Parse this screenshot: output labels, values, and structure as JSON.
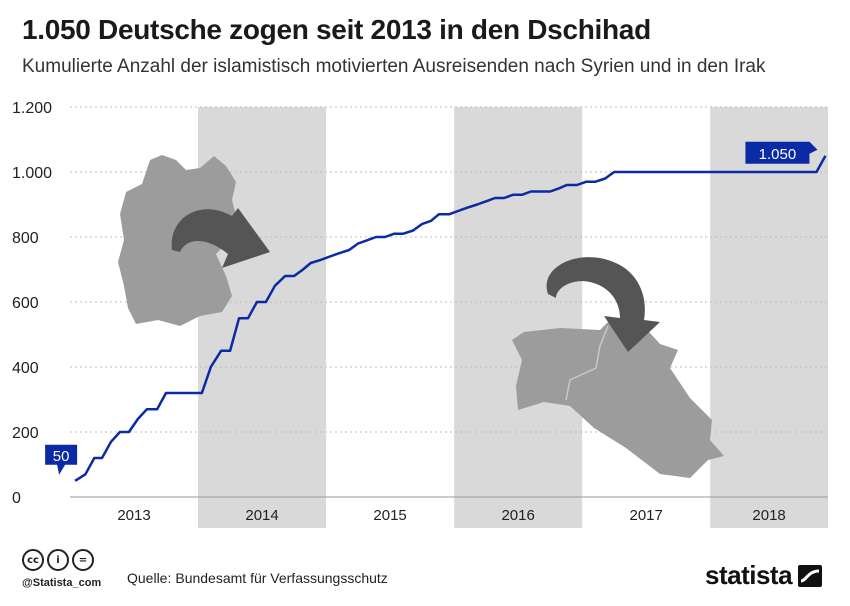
{
  "header": {
    "title": "1.050 Deutsche zogen seit 2013 in den Dschihad",
    "subtitle": "Kumulierte Anzahl der islamistisch motivierten Ausreisenden nach Syrien und in den Irak"
  },
  "chart_data": {
    "type": "line",
    "title": "1.050 Deutsche zogen seit 2013 in den Dschihad",
    "subtitle": "Kumulierte Anzahl der islamistisch motivierten Ausreisenden nach Syrien und in den Irak",
    "xlabel": "",
    "ylabel": "",
    "ylim": [
      0,
      1200
    ],
    "yticks": [
      0,
      200,
      400,
      600,
      800,
      1000,
      1200
    ],
    "ytick_labels": [
      "0",
      "200",
      "400",
      "600",
      "800",
      "1.000",
      "1.200"
    ],
    "xlim": [
      2013.0,
      2018.92
    ],
    "years": [
      "2013",
      "2014",
      "2015",
      "2016",
      "2017",
      "2018"
    ],
    "shaded_years": [
      "2014",
      "2016",
      "2018"
    ],
    "grid": true,
    "line_color": "#0b2aa5",
    "shade_color": "#d9d9d9",
    "series": [
      {
        "x": [
          2013.04,
          2013.12,
          2013.19,
          2013.25,
          2013.32,
          2013.39,
          2013.46,
          2013.53,
          2013.6,
          2013.68,
          2013.75,
          2013.82,
          2013.88,
          2013.96,
          2014.03,
          2014.1,
          2014.18,
          2014.25,
          2014.32,
          2014.39,
          2014.46,
          2014.53,
          2014.6,
          2014.68,
          2014.75,
          2014.82,
          2014.88,
          2014.96,
          2015.03,
          2015.1,
          2015.18,
          2015.25,
          2015.32,
          2015.39,
          2015.46,
          2015.53,
          2015.6,
          2015.68,
          2015.75,
          2015.82,
          2015.88,
          2015.96,
          2016.03,
          2016.1,
          2016.18,
          2016.25,
          2016.32,
          2016.39,
          2016.46,
          2016.53,
          2016.6,
          2016.68,
          2016.75,
          2016.82,
          2016.88,
          2016.96,
          2017.03,
          2017.1,
          2017.18,
          2017.25,
          2017.32,
          2017.39,
          2017.46,
          2017.53,
          2017.6,
          2017.68,
          2017.75,
          2017.82,
          2017.88,
          2017.96,
          2018.03,
          2018.1,
          2018.18,
          2018.25,
          2018.32,
          2018.39,
          2018.46,
          2018.53,
          2018.6,
          2018.68,
          2018.75,
          2018.83,
          2018.9
        ],
        "values": [
          50,
          70,
          120,
          120,
          170,
          200,
          200,
          240,
          270,
          270,
          320,
          320,
          320,
          320,
          320,
          400,
          450,
          450,
          550,
          550,
          600,
          600,
          650,
          680,
          680,
          700,
          720,
          730,
          740,
          750,
          760,
          780,
          790,
          800,
          800,
          810,
          810,
          820,
          840,
          850,
          870,
          870,
          880,
          890,
          900,
          910,
          920,
          920,
          930,
          930,
          940,
          940,
          940,
          950,
          960,
          960,
          970,
          970,
          980,
          1000,
          1000,
          1000,
          1000,
          1000,
          1000,
          1000,
          1000,
          1000,
          1000,
          1000,
          1000,
          1000,
          1000,
          1000,
          1000,
          1000,
          1000,
          1000,
          1000,
          1000,
          1000,
          1000,
          1050
        ]
      }
    ],
    "annotations": [
      {
        "text": "50",
        "x": 2013.04,
        "y": 50
      },
      {
        "text": "1.050",
        "x": 2018.9,
        "y": 1050
      }
    ]
  },
  "footer": {
    "cc_icons": [
      "cc-icon",
      "by-icon",
      "nd-icon"
    ],
    "cc_glyphs": [
      "cc",
      "i",
      "="
    ],
    "handle": "@Statista_com",
    "source_label": "Quelle:",
    "source": "Bundesamt für Verfassungsschutz",
    "logo_text": "statista"
  }
}
